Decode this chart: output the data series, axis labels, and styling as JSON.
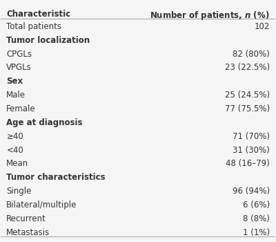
{
  "header_left": "Characteristic",
  "header_right": "Number of patients, n (%)",
  "rows": [
    {
      "label": "Total patients",
      "value": "102",
      "bold": false
    },
    {
      "label": "Tumor localization",
      "value": "",
      "bold": true
    },
    {
      "label": "CPGLs",
      "value": "82 (80%)",
      "bold": false
    },
    {
      "label": "VPGLs",
      "value": "23 (22.5%)",
      "bold": false
    },
    {
      "label": "Sex",
      "value": "",
      "bold": true
    },
    {
      "label": "Male",
      "value": "25 (24.5%)",
      "bold": false
    },
    {
      "label": "Female",
      "value": "77 (75.5%)",
      "bold": false
    },
    {
      "label": "Age at diagnosis",
      "value": "",
      "bold": true
    },
    {
      "label": "≥40",
      "value": "71 (70%)",
      "bold": false
    },
    {
      "label": "<40",
      "value": "31 (30%)",
      "bold": false
    },
    {
      "label": "Mean",
      "value": "48 (16–79)",
      "bold": false
    },
    {
      "label": "Tumor characteristics",
      "value": "",
      "bold": true
    },
    {
      "label": "Single",
      "value": "96 (94%)",
      "bold": false
    },
    {
      "label": "Bilateral/multiple",
      "value": "6 (6%)",
      "bold": false
    },
    {
      "label": "Recurrent",
      "value": "8 (8%)",
      "bold": false
    },
    {
      "label": "Metastasis",
      "value": "1 (1%)",
      "bold": false
    }
  ],
  "bg_color": "#f5f5f5",
  "header_line_color": "#aaaaaa",
  "text_color": "#333333",
  "font_size": 8.5,
  "header_font_size": 8.5
}
